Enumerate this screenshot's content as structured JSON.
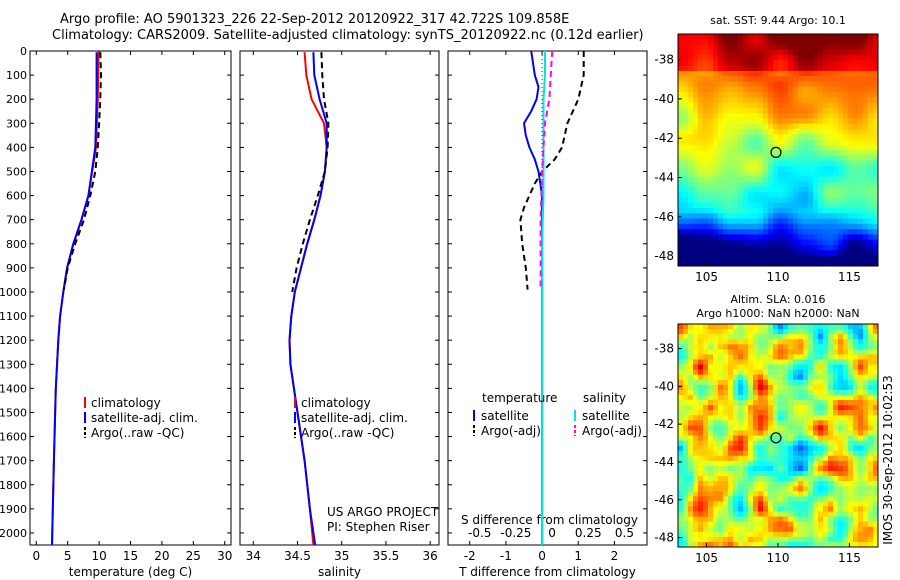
{
  "header": {
    "line1": "Argo profile: AO 5901323_226 22-Sep-2012 20120922_317 42.722S 109.858E",
    "line2": "Climatology: CARS2009. Satellite-adjusted climatology: synTS_20120922.nc (0.12d earlier)"
  },
  "side_label": "IMOS 30-Sep-2012 10:02:53",
  "colors": {
    "climatology": "#ff0000",
    "satellite": "#0000ff",
    "argo": "#000000",
    "satellite_salinity": "#00e5e5",
    "argo_salinity": "#ff00ff"
  },
  "chart_data": [
    {
      "type": "line",
      "panel": "temperature",
      "xlabel": "temperature (deg C)",
      "xlim": [
        -1,
        31
      ],
      "xticks": [
        0,
        5,
        10,
        15,
        20,
        25,
        30
      ],
      "ylim": [
        2050,
        0
      ],
      "yticks": [
        0,
        100,
        200,
        300,
        400,
        500,
        600,
        700,
        800,
        900,
        1000,
        1100,
        1200,
        1300,
        1400,
        1500,
        1600,
        1700,
        1800,
        1900,
        2000
      ],
      "legend": [
        "climatology",
        "satellite-adj. clim.",
        "Argo(..raw -QC)"
      ],
      "series": [
        {
          "name": "climatology",
          "color": "#ff0000",
          "depth": [
            5,
            200,
            400,
            600,
            700,
            800,
            900,
            1000,
            1100,
            1200,
            1400,
            1700,
            2050
          ],
          "values": [
            9.9,
            9.8,
            9.5,
            8.3,
            7.2,
            5.9,
            4.9,
            4.3,
            3.8,
            3.5,
            3.1,
            2.8,
            2.5
          ]
        },
        {
          "name": "satellite-adj. clim.",
          "color": "#0000ff",
          "depth": [
            5,
            200,
            400,
            600,
            700,
            800,
            900,
            1000,
            1100,
            1200,
            1400,
            1700,
            2050
          ],
          "values": [
            9.6,
            9.6,
            9.4,
            8.3,
            7.2,
            5.9,
            4.9,
            4.3,
            3.8,
            3.5,
            3.1,
            2.8,
            2.5
          ]
        },
        {
          "name": "Argo(..raw -QC)",
          "color": "#000000",
          "dashed": true,
          "depth": [
            5,
            100,
            200,
            300,
            400,
            500,
            600,
            700,
            800,
            900,
            990
          ],
          "values": [
            10.2,
            10.3,
            10.2,
            10.0,
            9.8,
            9.4,
            8.6,
            7.6,
            6.2,
            5.0,
            4.4
          ]
        }
      ]
    },
    {
      "type": "line",
      "panel": "salinity",
      "xlabel": "salinity",
      "xlim": [
        33.85,
        36.1
      ],
      "xticks": [
        34,
        34.5,
        35,
        35.5,
        36
      ],
      "ylim": [
        2050,
        0
      ],
      "legend": [
        "climatology",
        "satellite-adj. clim.",
        "Argo(..raw -QC)"
      ],
      "annotation": [
        "US ARGO PROJECT",
        "PI: Stephen Riser"
      ],
      "series": [
        {
          "name": "climatology",
          "color": "#ff0000",
          "depth": [
            5,
            100,
            200,
            300,
            400,
            500,
            600,
            700,
            800,
            900,
            1000,
            1100,
            1200,
            1300,
            1500,
            1700,
            1900,
            2050
          ],
          "values": [
            34.58,
            34.6,
            34.66,
            34.8,
            34.83,
            34.81,
            34.76,
            34.69,
            34.61,
            34.54,
            34.47,
            34.43,
            34.41,
            34.42,
            34.5,
            34.58,
            34.64,
            34.68
          ]
        },
        {
          "name": "satellite-adj. clim.",
          "color": "#0000ff",
          "depth": [
            5,
            100,
            200,
            300,
            400,
            500,
            600,
            700,
            800,
            900,
            1000,
            1100,
            1200,
            1300,
            1500,
            1700,
            1900,
            2050
          ],
          "values": [
            34.68,
            34.69,
            34.75,
            34.83,
            34.83,
            34.81,
            34.76,
            34.69,
            34.61,
            34.54,
            34.47,
            34.43,
            34.41,
            34.42,
            34.5,
            34.58,
            34.64,
            34.7
          ]
        },
        {
          "name": "Argo(..raw -QC)",
          "color": "#000000",
          "dashed": true,
          "depth": [
            5,
            100,
            200,
            300,
            400,
            500,
            600,
            700,
            800,
            900,
            1000
          ],
          "values": [
            34.77,
            34.78,
            34.8,
            34.85,
            34.84,
            34.81,
            34.73,
            34.64,
            34.56,
            34.49,
            34.44
          ]
        }
      ]
    },
    {
      "type": "line",
      "panel": "difference",
      "xlabel": "T difference from climatology",
      "xlabel_top": "S difference from climatology",
      "xlim": [
        -2.6,
        2.9
      ],
      "xticks": [
        -2,
        -1,
        0,
        1,
        2
      ],
      "xticks_s": [
        -0.5,
        -0.25,
        0,
        0.25,
        0.5
      ],
      "ylim": [
        2050,
        0
      ],
      "legend_headers": [
        "temperature",
        "salinity"
      ],
      "legend": [
        "satellite",
        "Argo(-adj)",
        "satellite",
        "Argo(-adj)"
      ],
      "series": [
        {
          "name": "satellite",
          "quantity": "temperature",
          "color": "#0000ff",
          "depth": [
            0,
            50,
            100,
            150,
            200,
            250,
            300,
            350,
            400,
            450,
            500,
            550,
            600,
            700,
            800,
            1000,
            1500,
            2050
          ],
          "values": [
            -0.3,
            -0.25,
            -0.2,
            -0.1,
            -0.15,
            -0.3,
            -0.5,
            -0.45,
            -0.35,
            -0.2,
            -0.1,
            -0.05,
            0,
            0,
            0,
            0,
            0,
            0
          ]
        },
        {
          "name": "Argo(-adj)",
          "quantity": "temperature",
          "color": "#000000",
          "dashed": true,
          "depth": [
            0,
            100,
            200,
            300,
            400,
            450,
            500,
            550,
            600,
            650,
            700,
            800,
            900,
            990
          ],
          "values": [
            1.15,
            1.15,
            1.0,
            0.7,
            0.55,
            0.35,
            0,
            -0.2,
            -0.35,
            -0.5,
            -0.6,
            -0.55,
            -0.45,
            -0.4
          ]
        },
        {
          "name": "satellite",
          "quantity": "salinity",
          "color": "#00e5e5",
          "depth": [
            0,
            100,
            200,
            400,
            600,
            800,
            1000,
            1500,
            2050
          ],
          "values": [
            0.02,
            0.02,
            0.01,
            0.01,
            0.01,
            0.0,
            0.0,
            0.0,
            0.0
          ]
        },
        {
          "name": "Argo(-adj)",
          "quantity": "salinity",
          "color": "#ff00ff",
          "dashed": true,
          "depth": [
            0,
            100,
            200,
            300,
            400,
            500,
            700,
            900,
            990
          ],
          "values": [
            0.07,
            0.06,
            0.05,
            0.02,
            0.01,
            0.0,
            -0.01,
            -0.01,
            -0.01
          ]
        }
      ]
    },
    {
      "type": "heatmap",
      "panel": "sst_map",
      "title": "sat. SST: 9.44 Argo: 10.1",
      "xlim": [
        103,
        117
      ],
      "ylim": [
        -48.5,
        -36.7
      ],
      "xticks": [
        105,
        110,
        115
      ],
      "yticks": [
        -38,
        -40,
        -42,
        -44,
        -46,
        -48
      ],
      "marker": {
        "lon": 109.858,
        "lat": -42.722
      }
    },
    {
      "type": "heatmap",
      "panel": "sla_map",
      "title": "Altim. SLA: 0.016",
      "subtitle": "Argo h1000: NaN h2000: NaN",
      "xlim": [
        103,
        117
      ],
      "ylim": [
        -48.5,
        -36.7
      ],
      "xticks": [
        105,
        110,
        115
      ],
      "yticks": [
        -38,
        -40,
        -42,
        -44,
        -46,
        -48
      ],
      "marker": {
        "lon": 109.858,
        "lat": -42.722
      }
    }
  ]
}
